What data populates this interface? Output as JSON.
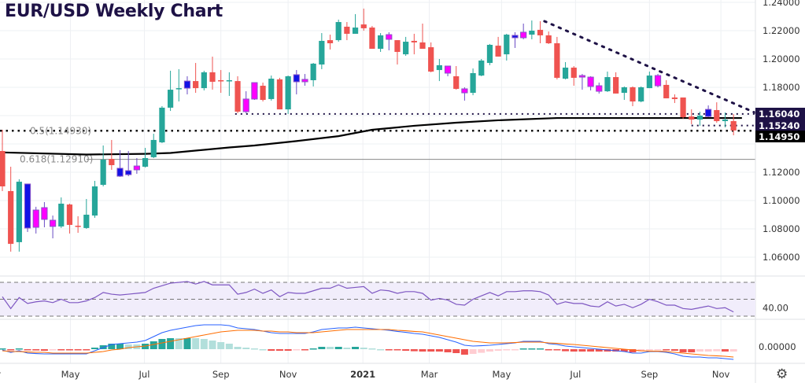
{
  "chart_data": {
    "type": "candlestick",
    "title": "EUR/USD Weekly Chart",
    "price_axis": {
      "ylim": [
        1.05,
        1.2415
      ],
      "ticks": [
        "1.06000",
        "1.08000",
        "1.10000",
        "1.12000",
        "1.18000",
        "1.20000",
        "1.22000",
        "1.24000"
      ],
      "tick_values": [
        1.06,
        1.08,
        1.1,
        1.12,
        1.18,
        1.2,
        1.22,
        1.24
      ],
      "grid_values": [
        1.06,
        1.08,
        1.1,
        1.12,
        1.14,
        1.16,
        1.18,
        1.2,
        1.22,
        1.24
      ]
    },
    "time_axis": {
      "labels": [
        "May",
        "Jul",
        "Sep",
        "Nov",
        "2021",
        "Mar",
        "May",
        "Jul",
        "Sep",
        "Nov"
      ],
      "positions": [
        8.1,
        16.9,
        26,
        34,
        42.9,
        50.8,
        59.4,
        68.2,
        77,
        85.5
      ],
      "bold": [
        false,
        false,
        false,
        false,
        true,
        false,
        false,
        false,
        false,
        false
      ]
    },
    "candle_colors": {
      "u": "#26a69a",
      "d": "#ef5350",
      "b": "#1212e6",
      "m": "#ff00ff"
    },
    "candles": [
      [
        1.135,
        1.15,
        1.1067,
        1.11,
        "d"
      ],
      [
        1.1067,
        1.1239,
        1.0639,
        1.0694,
        "d"
      ],
      [
        1.0706,
        1.115,
        1.0639,
        1.1133,
        "u"
      ],
      [
        1.1117,
        1.1117,
        1.0778,
        1.0806,
        "b"
      ],
      [
        1.0811,
        1.0956,
        1.0767,
        1.0933,
        "m"
      ],
      [
        1.0867,
        1.0989,
        1.0811,
        1.095,
        "m"
      ],
      [
        1.0817,
        1.0894,
        1.0733,
        1.0861,
        "m"
      ],
      [
        1.0817,
        1.1022,
        1.0806,
        1.0978,
        "u"
      ],
      [
        1.0972,
        1.0978,
        1.0767,
        1.0828,
        "d"
      ],
      [
        1.0822,
        1.0889,
        1.0772,
        1.0817,
        "d"
      ],
      [
        1.0806,
        1.1011,
        1.08,
        1.09,
        "u"
      ],
      [
        1.0894,
        1.1139,
        1.0878,
        1.11,
        "u"
      ],
      [
        1.1111,
        1.1389,
        1.11,
        1.1289,
        "u"
      ],
      [
        1.1294,
        1.1428,
        1.1217,
        1.125,
        "d"
      ],
      [
        1.1228,
        1.1356,
        1.1167,
        1.1172,
        "b"
      ],
      [
        1.1211,
        1.135,
        1.1172,
        1.1183,
        "b"
      ],
      [
        1.1217,
        1.13,
        1.1189,
        1.1244,
        "m"
      ],
      [
        1.1239,
        1.1372,
        1.1233,
        1.13,
        "u"
      ],
      [
        1.1306,
        1.1472,
        1.13,
        1.1428,
        "u"
      ],
      [
        1.1411,
        1.1667,
        1.1406,
        1.1656,
        "u"
      ],
      [
        1.1656,
        1.1917,
        1.1633,
        1.1783,
        "u"
      ],
      [
        1.1789,
        1.1928,
        1.17,
        1.1794,
        "u"
      ],
      [
        1.1844,
        1.1878,
        1.175,
        1.1794,
        "b"
      ],
      [
        1.1844,
        1.1972,
        1.1761,
        1.1794,
        "d"
      ],
      [
        1.1794,
        1.1917,
        1.1778,
        1.1906,
        "u"
      ],
      [
        1.1906,
        1.2017,
        1.1783,
        1.1839,
        "d"
      ],
      [
        1.185,
        1.1922,
        1.1761,
        1.1844,
        "d"
      ],
      [
        1.1844,
        1.1906,
        1.1739,
        1.185,
        "u"
      ],
      [
        1.1844,
        1.1878,
        1.1617,
        1.1628,
        "d"
      ],
      [
        1.1628,
        1.1772,
        1.1617,
        1.1717,
        "m"
      ],
      [
        1.1717,
        1.1833,
        1.1711,
        1.1833,
        "m"
      ],
      [
        1.1811,
        1.1833,
        1.17,
        1.1711,
        "d"
      ],
      [
        1.1717,
        1.1883,
        1.1706,
        1.1861,
        "u"
      ],
      [
        1.1856,
        1.1867,
        1.1644,
        1.1644,
        "d"
      ],
      [
        1.1644,
        1.1883,
        1.1611,
        1.1878,
        "u"
      ],
      [
        1.1889,
        1.1922,
        1.175,
        1.1839,
        "b"
      ],
      [
        1.1839,
        1.1894,
        1.1811,
        1.1856,
        "m"
      ],
      [
        1.185,
        1.1972,
        1.1806,
        1.1967,
        "u"
      ],
      [
        1.1961,
        1.2183,
        1.1928,
        1.2128,
        "u"
      ],
      [
        1.2133,
        1.2172,
        1.2067,
        1.2111,
        "d"
      ],
      [
        1.2133,
        1.2278,
        1.2122,
        1.2261,
        "u"
      ],
      [
        1.2228,
        1.2261,
        1.2133,
        1.2178,
        "d"
      ],
      [
        1.2178,
        1.2317,
        1.2178,
        1.2222,
        "u"
      ],
      [
        1.2244,
        1.2356,
        1.22,
        1.2217,
        "d"
      ],
      [
        1.2222,
        1.2233,
        1.2072,
        1.2072,
        "d"
      ],
      [
        1.2072,
        1.2183,
        1.205,
        1.2167,
        "u"
      ],
      [
        1.2139,
        1.2189,
        1.2061,
        1.2172,
        "m"
      ],
      [
        1.2133,
        1.2133,
        1.1961,
        1.205,
        "d"
      ],
      [
        1.2033,
        1.2156,
        1.2022,
        1.2122,
        "u"
      ],
      [
        1.2128,
        1.2178,
        1.2033,
        1.2117,
        "d"
      ],
      [
        1.2117,
        1.225,
        1.2072,
        1.2072,
        "d"
      ],
      [
        1.2083,
        1.2117,
        1.1906,
        1.1911,
        "d"
      ],
      [
        1.1922,
        1.2,
        1.1844,
        1.1956,
        "u"
      ],
      [
        1.195,
        1.195,
        1.1878,
        1.19,
        "m"
      ],
      [
        1.1878,
        1.195,
        1.1783,
        1.1789,
        "d"
      ],
      [
        1.1789,
        1.18,
        1.1706,
        1.1761,
        "m"
      ],
      [
        1.1761,
        1.1933,
        1.1744,
        1.19,
        "u"
      ],
      [
        1.1883,
        1.2,
        1.1878,
        1.1989,
        "u"
      ],
      [
        1.1972,
        1.2106,
        1.1956,
        1.21,
        "u"
      ],
      [
        1.2094,
        1.2156,
        1.2017,
        1.2017,
        "d"
      ],
      [
        1.2033,
        1.2178,
        1.1989,
        1.2172,
        "u"
      ],
      [
        1.2167,
        1.2189,
        1.2078,
        1.215,
        "b"
      ],
      [
        1.215,
        1.225,
        1.2139,
        1.2189,
        "m"
      ],
      [
        1.2172,
        1.2272,
        1.2139,
        1.22,
        "u"
      ],
      [
        1.2206,
        1.2267,
        1.2111,
        1.2167,
        "d"
      ],
      [
        1.2167,
        1.2194,
        1.2106,
        1.2111,
        "d"
      ],
      [
        1.2111,
        1.2156,
        1.1856,
        1.1867,
        "d"
      ],
      [
        1.1861,
        1.1978,
        1.1856,
        1.1939,
        "u"
      ],
      [
        1.1939,
        1.195,
        1.1811,
        1.1867,
        "d"
      ],
      [
        1.1883,
        1.1894,
        1.1783,
        1.1872,
        "m"
      ],
      [
        1.1872,
        1.1878,
        1.1778,
        1.1806,
        "m"
      ],
      [
        1.1811,
        1.1833,
        1.1756,
        1.1772,
        "m"
      ],
      [
        1.1772,
        1.1911,
        1.1767,
        1.1872,
        "u"
      ],
      [
        1.1872,
        1.1906,
        1.1756,
        1.1756,
        "d"
      ],
      [
        1.1761,
        1.1806,
        1.1711,
        1.18,
        "u"
      ],
      [
        1.18,
        1.1806,
        1.1667,
        1.17,
        "d"
      ],
      [
        1.17,
        1.1806,
        1.1694,
        1.18,
        "u"
      ],
      [
        1.1794,
        1.1911,
        1.1794,
        1.1883,
        "u"
      ],
      [
        1.1883,
        1.1894,
        1.18,
        1.1811,
        "m"
      ],
      [
        1.1817,
        1.185,
        1.1722,
        1.1722,
        "d"
      ],
      [
        1.1728,
        1.175,
        1.1689,
        1.1717,
        "d"
      ],
      [
        1.1728,
        1.1728,
        1.1578,
        1.1589,
        "d"
      ],
      [
        1.1594,
        1.1644,
        1.1539,
        1.1572,
        "d"
      ],
      [
        1.1572,
        1.1628,
        1.1528,
        1.16,
        "u"
      ],
      [
        1.1594,
        1.1672,
        1.1589,
        1.1644,
        "b"
      ],
      [
        1.1639,
        1.1694,
        1.155,
        1.1561,
        "d"
      ],
      [
        1.1561,
        1.1622,
        1.1517,
        1.1572,
        "u"
      ],
      [
        1.1561,
        1.1611,
        1.1461,
        1.1495,
        "d"
      ]
    ],
    "moving_average": {
      "points": [
        [
          0,
          1.134
        ],
        [
          10,
          1.1325
        ],
        [
          17,
          1.133
        ],
        [
          20,
          1.1336
        ],
        [
          27,
          1.1375
        ],
        [
          30,
          1.1389
        ],
        [
          35,
          1.142
        ],
        [
          40,
          1.1455
        ],
        [
          44,
          1.15
        ],
        [
          49,
          1.1528
        ],
        [
          54,
          1.155
        ],
        [
          59,
          1.1567
        ],
        [
          66,
          1.1583
        ],
        [
          88,
          1.1583
        ]
      ]
    },
    "fibonacci": [
      {
        "label": "0.5(1.14930)",
        "value": 1.1493,
        "style": "dotted"
      },
      {
        "label": "0.618(1.12910)",
        "value": 1.1291,
        "style": "solid"
      }
    ],
    "support_lines": [
      {
        "value": 1.1612,
        "from": 27.7
      },
      {
        "value": 1.153,
        "from": 82
      }
    ],
    "trendline": {
      "from": [
        64.5,
        1.2267
      ],
      "to": [
        89.6,
        1.162
      ]
    },
    "price_labels": [
      {
        "text": "1.16040",
        "value": 1.1604,
        "color": "#1e1246"
      },
      {
        "text": "1.15240",
        "value": 1.1524,
        "color": "#1e1246"
      },
      {
        "text": "1.14950",
        "value": 1.1495,
        "color": "#000000"
      }
    ],
    "rsi": {
      "levels": [
        70,
        50,
        30
      ],
      "axis_label": "40.00",
      "values": [
        53,
        39,
        52,
        45,
        47,
        48,
        46,
        50,
        46,
        46,
        48,
        52,
        58,
        56,
        55,
        56,
        57,
        58,
        63,
        66,
        69,
        70,
        71,
        68,
        71,
        67,
        67,
        67,
        56,
        58,
        62,
        57,
        61,
        53,
        58,
        57,
        57,
        60,
        63,
        63,
        67,
        63,
        64,
        65,
        57,
        61,
        60,
        57,
        59,
        59,
        57,
        49,
        51,
        49,
        44,
        43,
        50,
        54,
        58,
        54,
        59,
        59,
        60,
        60,
        59,
        55,
        44,
        47,
        45,
        45,
        42,
        41,
        47,
        42,
        44,
        40,
        44,
        50,
        47,
        43,
        43,
        39,
        38,
        40,
        42,
        39,
        40,
        35
      ]
    },
    "macd": {
      "axis_label": "0.00000",
      "macd": [
        -0.0005,
        -0.002,
        -0.001,
        -0.0025,
        -0.0028,
        -0.003,
        -0.003,
        -0.003,
        -0.003,
        -0.003,
        -0.003,
        -0.001,
        0.001,
        0.003,
        0.0035,
        0.004,
        0.0045,
        0.0055,
        0.008,
        0.0105,
        0.012,
        0.013,
        0.014,
        0.015,
        0.0155,
        0.0155,
        0.0155,
        0.015,
        0.0135,
        0.013,
        0.0125,
        0.0115,
        0.0105,
        0.01,
        0.01,
        0.01,
        0.01,
        0.011,
        0.0125,
        0.013,
        0.0135,
        0.0135,
        0.014,
        0.0135,
        0.013,
        0.0125,
        0.012,
        0.0113,
        0.0107,
        0.01,
        0.0095,
        0.0085,
        0.0075,
        0.006,
        0.0045,
        0.0025,
        0.002,
        0.0022,
        0.0025,
        0.003,
        0.0035,
        0.004,
        0.005,
        0.005,
        0.005,
        0.0035,
        0.003,
        0.002,
        0.0015,
        0.001,
        0.0005,
        0,
        -0.0005,
        -0.001,
        -0.0015,
        -0.0025,
        -0.0025,
        -0.0015,
        -0.0015,
        -0.002,
        -0.003,
        -0.0045,
        -0.005,
        -0.005,
        -0.0055,
        -0.0055,
        -0.006,
        -0.0065
      ],
      "signal": [
        -0.001,
        -0.0015,
        -0.0015,
        -0.0018,
        -0.002,
        -0.002,
        -0.0025,
        -0.0025,
        -0.0025,
        -0.0025,
        -0.0025,
        -0.002,
        -0.0015,
        -0.0005,
        0,
        0.001,
        0.0015,
        0.002,
        0.003,
        0.004,
        0.005,
        0.006,
        0.007,
        0.008,
        0.009,
        0.01,
        0.011,
        0.0115,
        0.012,
        0.012,
        0.012,
        0.0115,
        0.0115,
        0.011,
        0.011,
        0.0105,
        0.0105,
        0.0105,
        0.011,
        0.0115,
        0.012,
        0.0125,
        0.0125,
        0.0125,
        0.0125,
        0.0125,
        0.0125,
        0.012,
        0.0117,
        0.0113,
        0.011,
        0.01,
        0.009,
        0.008,
        0.007,
        0.006,
        0.005,
        0.0045,
        0.004,
        0.004,
        0.004,
        0.0042,
        0.0045,
        0.0045,
        0.0045,
        0.004,
        0.0037,
        0.0033,
        0.003,
        0.0025,
        0.002,
        0.0015,
        0.001,
        0.0005,
        0,
        -0.0005,
        -0.001,
        -0.0012,
        -0.0013,
        -0.0015,
        -0.002,
        -0.0025,
        -0.003,
        -0.0035,
        -0.004,
        -0.0042,
        -0.0045,
        -0.005
      ]
    }
  },
  "settings_icon": "gear-icon"
}
